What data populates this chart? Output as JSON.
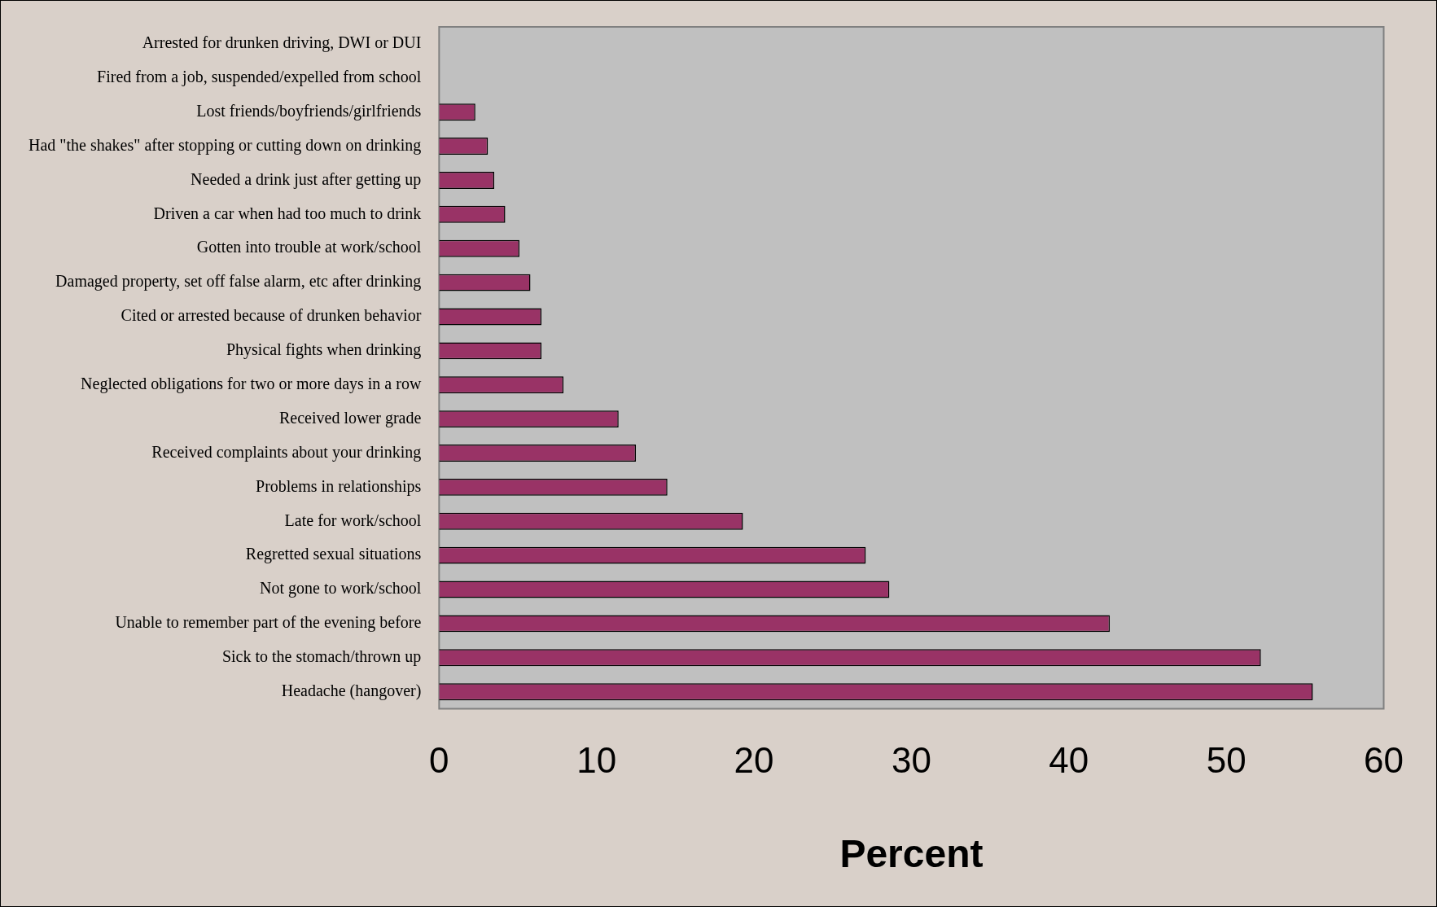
{
  "chart_data": {
    "type": "bar",
    "orientation": "horizontal",
    "xlabel": "Percent",
    "categories": [
      "Arrested for drunken driving, DWI or DUI",
      "Fired from a job, suspended/expelled from school",
      "Lost friends/boyfriends/girlfriends",
      "Had \"the shakes\" after stopping or cutting down on drinking",
      "Needed a drink just after getting up",
      "Driven a car when had too much to drink",
      "Gotten into trouble at work/school",
      "Damaged property, set off false alarm, etc after drinking",
      "Cited or arrested because of drunken behavior",
      "Physical fights when drinking",
      "Neglected obligations for two or more days in a row",
      "Received lower grade",
      "Received complaints about your drinking",
      "Problems in relationships",
      "Late for work/school",
      "Regretted sexual situations",
      "Not gone to work/school",
      "Unable to remember part of the evening before",
      "Sick to the stomach/thrown up",
      "Headache (hangover)"
    ],
    "values": [
      0,
      0,
      2.3,
      3.1,
      3.5,
      4.2,
      5.1,
      5.8,
      6.5,
      6.5,
      7.9,
      11.4,
      12.5,
      14.5,
      19.3,
      27.1,
      28.6,
      42.6,
      52.2,
      55.5
    ],
    "color": "#993366",
    "xlim": [
      0,
      60
    ],
    "xticks": [
      0,
      10,
      20,
      30,
      40,
      50,
      60
    ],
    "grid": false,
    "legend": false
  }
}
